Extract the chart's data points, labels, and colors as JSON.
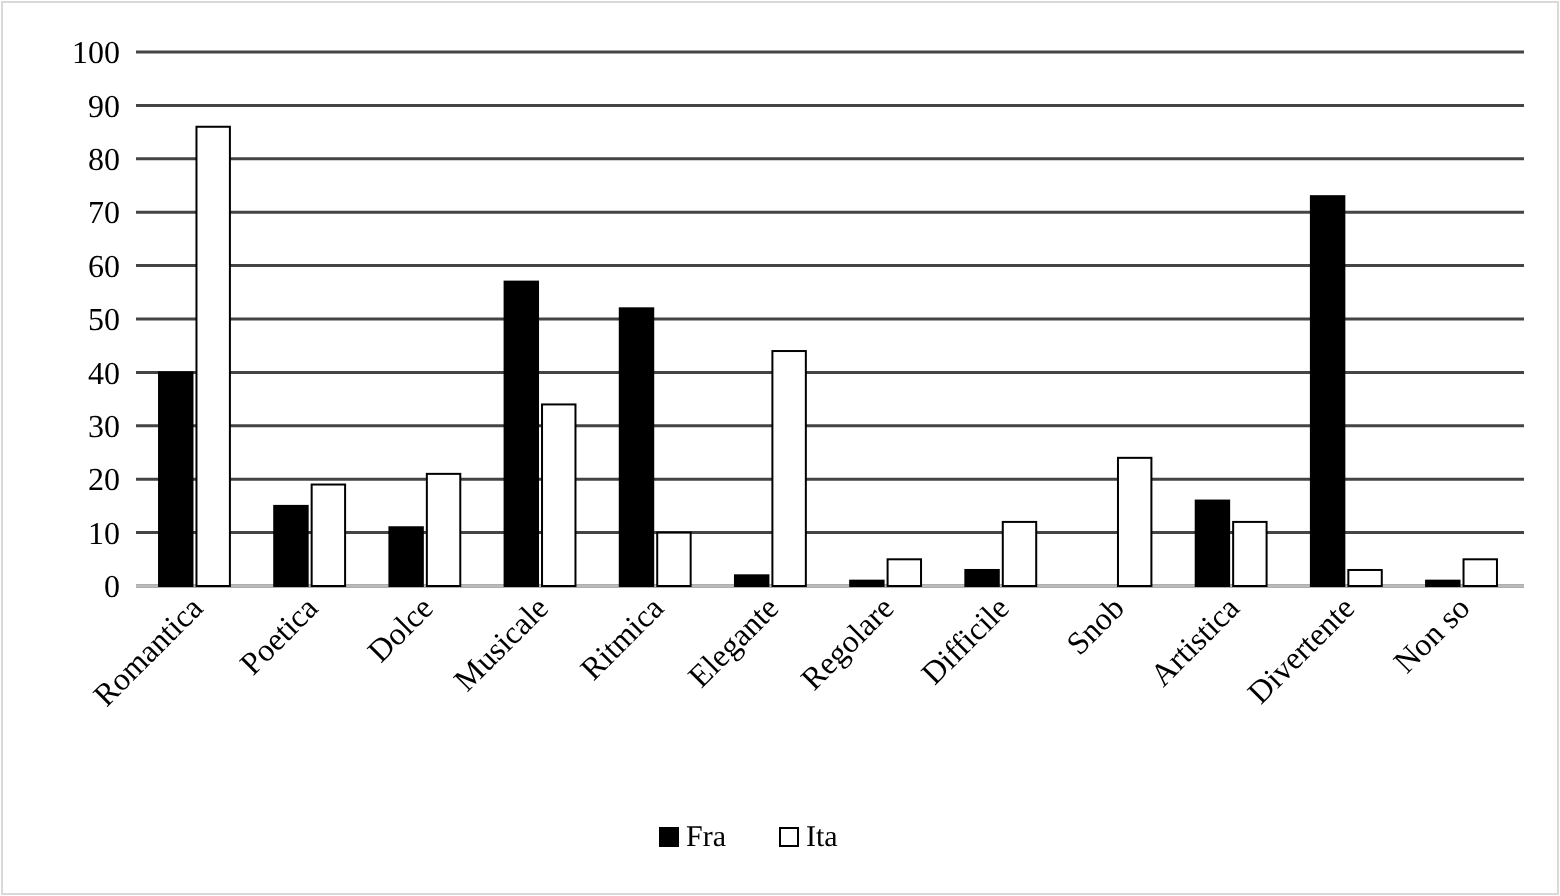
{
  "chart_data": {
    "type": "bar",
    "categories": [
      "Romantica",
      "Poetica",
      "Dolce",
      "Musicale",
      "Ritmica",
      "Elegante",
      "Regolare",
      "Difficile",
      "Snob",
      "Artistica",
      "Divertente",
      "Non so"
    ],
    "series": [
      {
        "name": "Fra",
        "color": "#000000",
        "values": [
          40,
          15,
          11,
          57,
          52,
          2,
          1,
          3,
          0,
          16,
          73,
          1
        ]
      },
      {
        "name": "Ita",
        "color": "#ffffff",
        "values": [
          86,
          19,
          21,
          34,
          10,
          44,
          5,
          12,
          24,
          12,
          3,
          5
        ]
      }
    ],
    "ylim": [
      0,
      100
    ],
    "yticks": [
      0,
      10,
      20,
      30,
      40,
      50,
      60,
      70,
      80,
      90,
      100
    ],
    "grid": "y",
    "legend": "bottom"
  }
}
